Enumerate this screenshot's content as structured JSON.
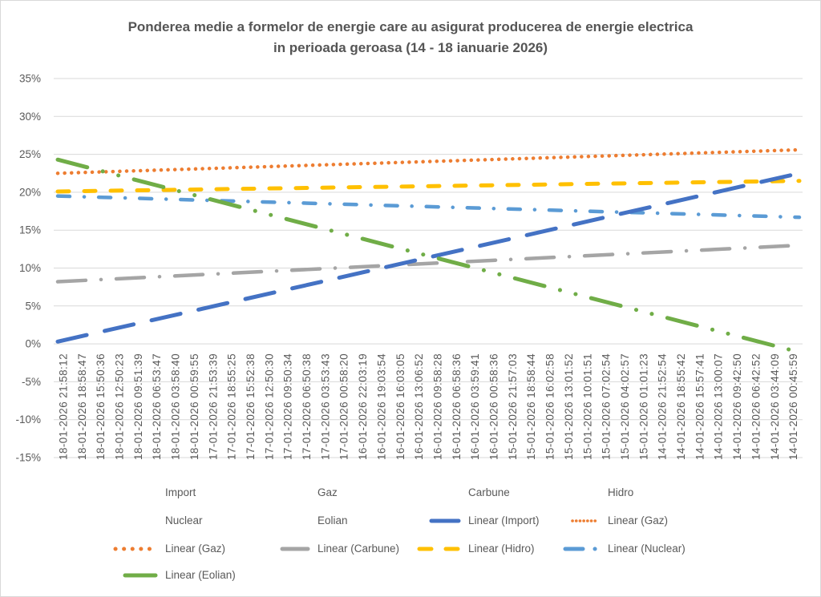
{
  "window": {
    "background": "#FFFFFF",
    "border_color": "#D9D9D9"
  },
  "title": {
    "line1": "Ponderea medie a formelor de energie care au asigurat producerea de energie electrica",
    "line2": "in perioada geroasa (14 - 18 ianuarie 2026)"
  },
  "axes": {
    "text_color": "#595959",
    "grid_color": "#D9D9D9",
    "y_tick_labels": [
      "35%",
      "30%",
      "25%",
      "20%",
      "15%",
      "10%",
      "5%",
      "0%",
      "-5%",
      "-10%",
      "-15%"
    ],
    "y_tick_values": [
      35,
      30,
      25,
      20,
      15,
      10,
      5,
      0,
      -5,
      -10,
      -15
    ]
  },
  "chart_data": {
    "type": "line",
    "title": "Ponderea medie a formelor de energie care au asigurat producerea de energie electrica in perioada geroasa (14 - 18 ianuarie 2026)",
    "xlabel": "",
    "ylabel": "",
    "ylim": [
      -15,
      35
    ],
    "y_unit": "percent",
    "grid": true,
    "legend_position": "bottom",
    "categories": [
      "18-01-2026 21:58:12",
      "18-01-2026 18:58:47",
      "18-01-2026 15:50:36",
      "18-01-2026 12:50:23",
      "18-01-2026 09:51:39",
      "18-01-2026 06:53:47",
      "18-01-2026 03:58:40",
      "18-01-2026 00:59:55",
      "17-01-2026 21:53:39",
      "17-01-2026 18:55:25",
      "17-01-2026 15:52:38",
      "17-01-2026 12:50:30",
      "17-01-2026 09:50:34",
      "17-01-2026 06:50:38",
      "17-01-2026 03:53:43",
      "17-01-2026 00:58:20",
      "16-01-2026 22:03:19",
      "16-01-2026 19:03:54",
      "16-01-2026 16:03:05",
      "16-01-2026 13:06:52",
      "16-01-2026 09:58:28",
      "16-01-2026 06:58:36",
      "16-01-2026 03:59:41",
      "16-01-2026 00:58:36",
      "15-01-2026 21:57:03",
      "15-01-2026 18:58:44",
      "15-01-2026 16:02:58",
      "15-01-2026 13:01:52",
      "15-01-2026 10:01:51",
      "15-01-2026 07:02:54",
      "15-01-2026 04:02:57",
      "15-01-2026 01:01:23",
      "14-01-2026 21:52:54",
      "14-01-2026 18:55:42",
      "14-01-2026 15:57:41",
      "14-01-2026 13:00:07",
      "14-01-2026 09:42:50",
      "14-01-2026 06:42:52",
      "14-01-2026 03:44:09",
      "14-01-2026 00:45:59"
    ],
    "series": [
      {
        "name": "Linear (Import)",
        "color": "#4472C4",
        "dash": "long-dash",
        "trend": "linear",
        "start_value": 0.3,
        "end_value": 22.5
      },
      {
        "name": "Linear (Gaz)",
        "color": "#ED7D31",
        "dash": "dot",
        "trend": "linear",
        "start_value": 22.5,
        "end_value": 25.6
      },
      {
        "name": "Linear (Carbune)",
        "color": "#A5A5A5",
        "dash": "dash-dot",
        "trend": "linear",
        "start_value": 8.2,
        "end_value": 13.0
      },
      {
        "name": "Linear (Hidro)",
        "color": "#FFC000",
        "dash": "dash",
        "trend": "linear",
        "start_value": 20.1,
        "end_value": 21.5
      },
      {
        "name": "Linear (Nuclear)",
        "color": "#5B9BD5",
        "dash": "dash-dot-small",
        "trend": "linear",
        "start_value": 19.5,
        "end_value": 16.7
      },
      {
        "name": "Linear (Eolian)",
        "color": "#70AD47",
        "dash": "dash-dot-dot",
        "trend": "linear",
        "start_value": 24.3,
        "end_value": -1.1
      }
    ]
  },
  "legend": {
    "text_color": "#595959",
    "rows": [
      [
        {
          "label": "Import"
        },
        {
          "label": "Gaz"
        },
        {
          "label": "Carbune"
        },
        {
          "label": "Hidro"
        }
      ],
      [
        {
          "label": "Nuclear"
        },
        {
          "label": "Eolian"
        },
        {
          "label": "Linear (Import)",
          "swatch": "import",
          "color": "#4472C4"
        },
        {
          "label": "Linear (Gaz)",
          "swatch": "gaz-fine",
          "color": "#ED7D31"
        }
      ],
      [
        {
          "label": "Linear (Gaz)",
          "swatch": "gaz",
          "color": "#ED7D31"
        },
        {
          "label": "Linear (Carbune)",
          "swatch": "carbune",
          "color": "#A5A5A5"
        },
        {
          "label": "Linear (Hidro)",
          "swatch": "hidro",
          "color": "#FFC000"
        },
        {
          "label": "Linear (Nuclear)",
          "swatch": "nuclear",
          "color": "#5B9BD5"
        }
      ],
      [
        {
          "label": "Linear (Eolian)",
          "swatch": "eolian",
          "color": "#70AD47"
        }
      ]
    ]
  }
}
